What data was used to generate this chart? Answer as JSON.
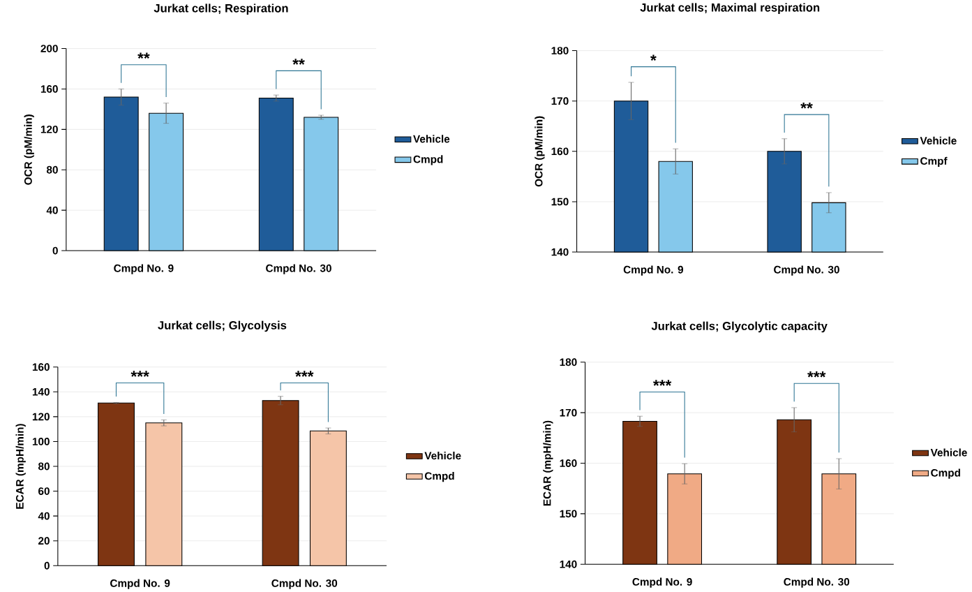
{
  "chart_data": [
    {
      "type": "bar",
      "title": "Jurkat cells; Respiration",
      "ylabel": "OCR (pM/min)",
      "categories": [
        "Cmpd No. 9",
        "Cmpd No. 30"
      ],
      "series": [
        {
          "name": "Vehicle",
          "color": "#1f5c99",
          "values": [
            152,
            151
          ],
          "errors": [
            8,
            3
          ]
        },
        {
          "name": "Cmpd",
          "color": "#85c8eb",
          "values": [
            136,
            132
          ],
          "errors": [
            10,
            2
          ]
        }
      ],
      "ylim": [
        0,
        200
      ],
      "yticks": [
        0,
        40,
        80,
        120,
        160,
        200
      ],
      "grid": "y",
      "legend": "right",
      "annotations": [
        "**",
        "**"
      ]
    },
    {
      "type": "bar",
      "title": "Jurkat cells; Maximal respiration",
      "ylabel": "OCR (pM/min)",
      "categories": [
        "Cmpd No. 9",
        "Cmpd No. 30"
      ],
      "series": [
        {
          "name": "Vehicle",
          "color": "#1f5c99",
          "values": [
            170,
            160
          ],
          "errors": [
            3.7,
            2.5
          ]
        },
        {
          "name": "Cmpf",
          "color": "#85c8eb",
          "values": [
            158,
            149.8
          ],
          "errors": [
            2.5,
            2
          ]
        }
      ],
      "ylim": [
        140,
        180
      ],
      "yticks": [
        140,
        150,
        160,
        170,
        180
      ],
      "grid": "y",
      "legend": "right",
      "annotations": [
        "*",
        "**"
      ]
    },
    {
      "type": "bar",
      "title": "Jurkat cells; Glycolysis",
      "ylabel": "ECAR (mpH/min)",
      "categories": [
        "Cmpd No. 9",
        "Cmpd No. 30"
      ],
      "series": [
        {
          "name": "Vehicle",
          "color": "#7e3512",
          "values": [
            131,
            133
          ],
          "errors": [
            0.5,
            3.4
          ]
        },
        {
          "name": "Cmpd",
          "color": "#f5c5a8",
          "values": [
            115,
            108.5
          ],
          "errors": [
            2.4,
            2.4
          ]
        }
      ],
      "ylim": [
        0,
        160
      ],
      "yticks": [
        0,
        20,
        40,
        60,
        80,
        100,
        120,
        140,
        160
      ],
      "grid": "y",
      "legend": "right",
      "annotations": [
        "***",
        "***"
      ]
    },
    {
      "type": "bar",
      "title": "Jurkat cells; Glycolytic capacity",
      "ylabel": "ECAR (mpH/min)",
      "categories": [
        "Cmpd No. 9",
        "Cmpd No. 30"
      ],
      "series": [
        {
          "name": "Vehicle",
          "color": "#7e3512",
          "values": [
            168.3,
            168.6
          ],
          "errors": [
            1,
            2.4
          ]
        },
        {
          "name": "Cmpd",
          "color": "#f0aa85",
          "values": [
            157.9,
            157.9
          ],
          "errors": [
            2,
            3
          ]
        }
      ],
      "ylim": [
        140,
        180
      ],
      "yticks": [
        140,
        150,
        160,
        170,
        180
      ],
      "grid": "y",
      "legend": "right",
      "annotations": [
        "***",
        "***"
      ]
    }
  ]
}
